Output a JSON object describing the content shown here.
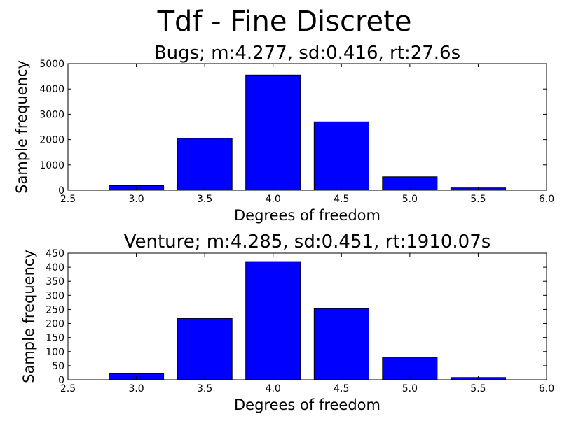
{
  "figure": {
    "suptitle": "Tdf - Fine Discrete"
  },
  "colors": {
    "bar": "#0000ff",
    "axis": "#000000",
    "background": "#ffffff"
  },
  "chart_data": [
    {
      "type": "bar",
      "title": "Bugs;  m:4.277,  sd:0.416,  rt:27.6s",
      "xlabel": "Degrees of freedom",
      "ylabel": "Sample frequency",
      "grid": false,
      "xlim": [
        2.5,
        6.0
      ],
      "ylim": [
        0,
        5000
      ],
      "xticks": [
        2.5,
        3.0,
        3.5,
        4.0,
        4.5,
        5.0,
        5.5,
        6.0
      ],
      "xtick_labels": [
        "2.5",
        "3.0",
        "3.5",
        "4.0",
        "4.5",
        "5.0",
        "5.5",
        "6.0"
      ],
      "yticks": [
        0,
        1000,
        2000,
        3000,
        4000,
        5000
      ],
      "ytick_labels": [
        "0",
        "1000",
        "2000",
        "3000",
        "4000",
        "5000"
      ],
      "bar_width": 0.4,
      "x": [
        3.0,
        3.5,
        4.0,
        4.5,
        5.0,
        5.5
      ],
      "values": [
        180,
        2050,
        4550,
        2700,
        530,
        90
      ]
    },
    {
      "type": "bar",
      "title": "Venture;  m:4.285,  sd:0.451,  rt:1910.07s",
      "xlabel": "Degrees of freedom",
      "ylabel": "Sample frequency",
      "grid": false,
      "xlim": [
        2.5,
        6.0
      ],
      "ylim": [
        0,
        450
      ],
      "xticks": [
        2.5,
        3.0,
        3.5,
        4.0,
        4.5,
        5.0,
        5.5,
        6.0
      ],
      "xtick_labels": [
        "2.5",
        "3.0",
        "3.5",
        "4.0",
        "4.5",
        "5.0",
        "5.5",
        "6.0"
      ],
      "yticks": [
        0,
        50,
        100,
        150,
        200,
        250,
        300,
        350,
        400,
        450
      ],
      "ytick_labels": [
        "0",
        "50",
        "100",
        "150",
        "200",
        "250",
        "300",
        "350",
        "400",
        "450"
      ],
      "bar_width": 0.4,
      "x": [
        3.0,
        3.5,
        4.0,
        4.5,
        5.0,
        5.5
      ],
      "values": [
        22,
        218,
        420,
        253,
        80,
        8
      ]
    }
  ]
}
